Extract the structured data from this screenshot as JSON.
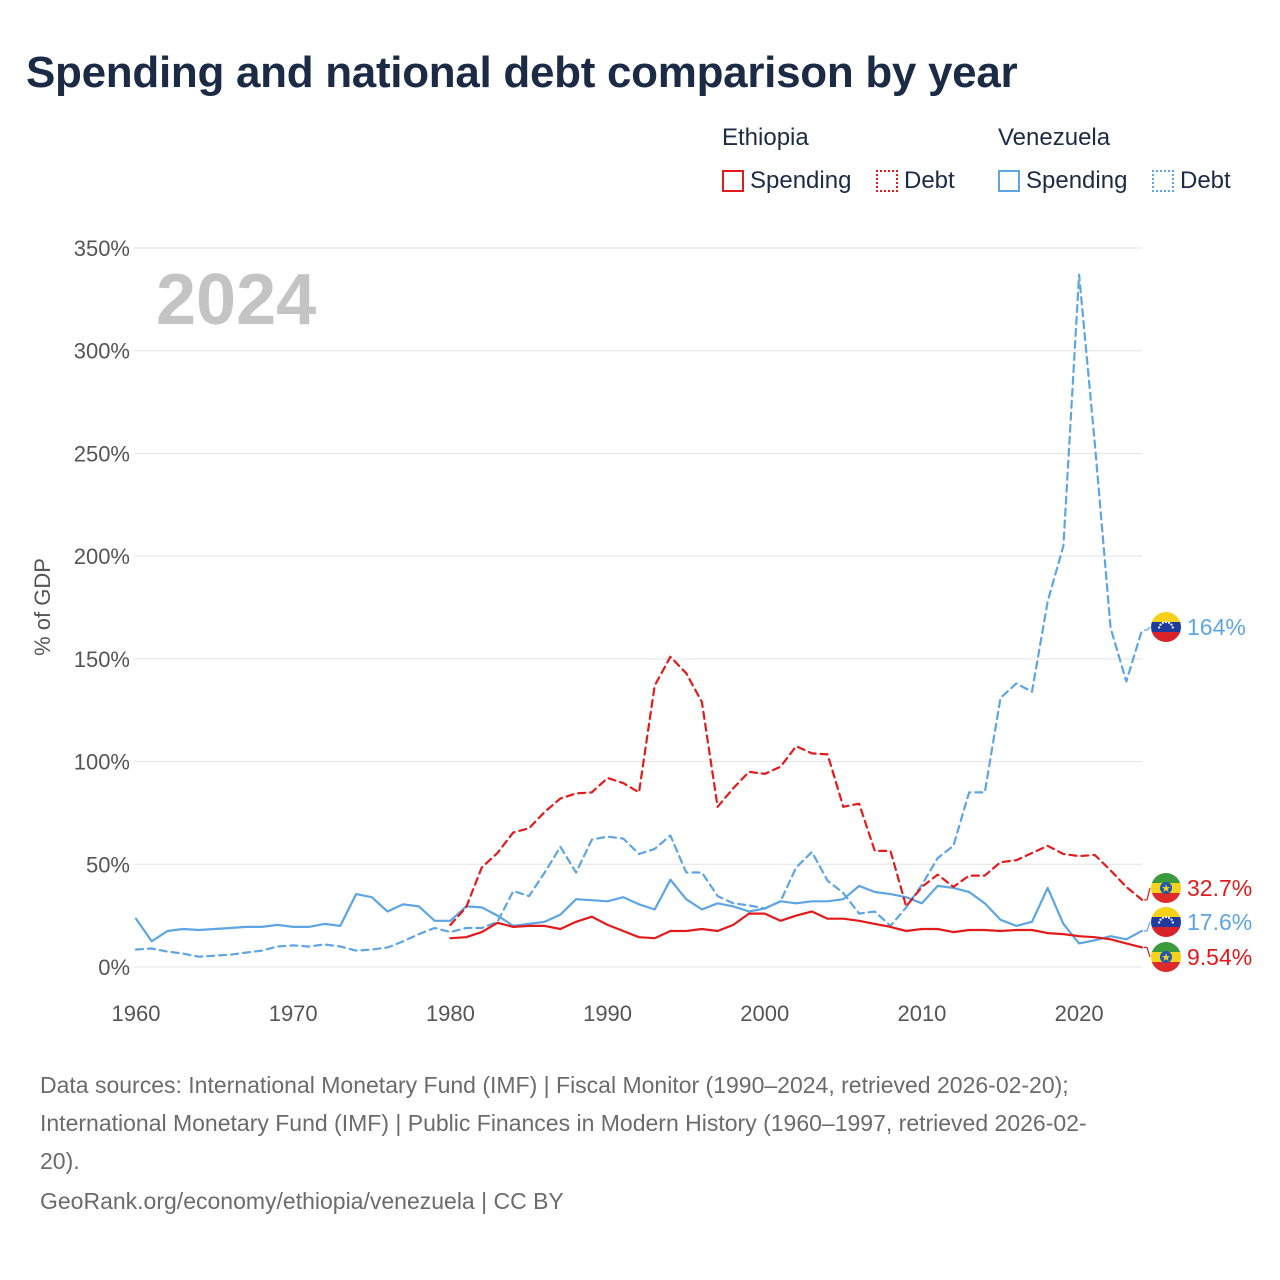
{
  "title": "Spending and national debt comparison by year",
  "legend": {
    "groups": [
      {
        "name": "Ethiopia",
        "color": "#e31a1c",
        "items": [
          "Spending",
          "Debt"
        ]
      },
      {
        "name": "Venezuela",
        "color": "#5da5e3",
        "items": [
          "Spending",
          "Debt"
        ]
      }
    ]
  },
  "year_watermark": "2024",
  "footer": {
    "sources_line1": "Data sources: International Monetary Fund (IMF) | Fiscal Monitor (1990–2024, retrieved 2026-02-20);",
    "sources_line2": "International Monetary Fund (IMF) | Public Finances in Modern History (1960–1997, retrieved 2026-02-",
    "sources_line3": "20).",
    "credit": "GeoRank.org/economy/ethiopia/venezuela | CC BY"
  },
  "chart_data": {
    "type": "line",
    "ylabel": "% of GDP",
    "xlabel": "",
    "xlim": [
      1960,
      2024
    ],
    "ylim": [
      0,
      350
    ],
    "x_ticks": [
      "1960",
      "1970",
      "1980",
      "1990",
      "2000",
      "2010",
      "2020"
    ],
    "y_ticks": [
      "0%",
      "50%",
      "100%",
      "150%",
      "200%",
      "250%",
      "300%",
      "350%"
    ],
    "end_labels": [
      {
        "series": "Venezuela Debt",
        "text": "164%",
        "color": "#5da5e3",
        "flag": "venezuela"
      },
      {
        "series": "Ethiopia Debt",
        "text": "32.7%",
        "color": "#e31a1c",
        "flag": "ethiopia"
      },
      {
        "series": "Venezuela Spending",
        "text": "17.6%",
        "color": "#5da5e3",
        "flag": "venezuela"
      },
      {
        "series": "Ethiopia Spending",
        "text": "9.54%",
        "color": "#e31a1c",
        "flag": "ethiopia"
      }
    ],
    "series": [
      {
        "name": "Venezuela Spending",
        "country": "Venezuela",
        "metric": "Spending",
        "color": "#5da5e3",
        "dash": "solid",
        "start_year": 1960,
        "values": [
          23.5,
          12.5,
          17.5,
          18.5,
          18,
          18.5,
          19,
          19.5,
          19.5,
          20.5,
          19.5,
          19.5,
          21,
          20,
          35.5,
          34,
          27,
          30.5,
          29.5,
          22.5,
          22.5,
          29.5,
          29,
          25,
          20,
          21,
          22,
          25.5,
          33,
          32.5,
          32,
          34,
          30.5,
          28,
          42.5,
          33,
          28,
          31,
          29.5,
          27,
          28.5,
          32,
          31,
          32,
          32,
          33,
          39.5,
          36.5,
          35.5,
          34,
          31,
          39.5,
          38.5,
          36.5,
          31,
          23,
          20,
          22,
          38.5,
          21,
          11.5,
          13,
          15,
          13.5,
          17.6
        ]
      },
      {
        "name": "Venezuela Debt",
        "country": "Venezuela",
        "metric": "Debt",
        "color": "#5da5e3",
        "dash": "dashed",
        "start_year": 1960,
        "values": [
          8.5,
          9,
          7.5,
          6.5,
          5,
          5.5,
          6,
          7,
          8,
          10,
          10.5,
          10,
          11,
          10,
          8,
          8.5,
          9.5,
          12.5,
          16,
          19,
          17,
          19,
          19,
          22,
          37,
          34.5,
          46,
          58.5,
          46,
          62,
          63.5,
          62.5,
          55,
          57.5,
          64,
          46,
          46,
          34.5,
          31,
          30,
          28.5,
          32,
          48.5,
          56,
          42,
          36,
          26,
          27,
          20,
          29,
          40,
          53,
          59,
          85,
          85,
          131,
          138,
          134,
          178,
          205,
          337,
          255,
          165,
          139,
          164
        ]
      },
      {
        "name": "Ethiopia Spending",
        "country": "Ethiopia",
        "metric": "Spending",
        "color": "#e31a1c",
        "dash": "solid",
        "start_year": 1980,
        "values": [
          14,
          14.5,
          17,
          21.5,
          19.5,
          20,
          20,
          18.5,
          22,
          24.5,
          20.5,
          17.5,
          14.5,
          14,
          17.5,
          17.5,
          18.5,
          17.5,
          20.5,
          26,
          26,
          22.5,
          25,
          27,
          23.5,
          23.5,
          22.5,
          21,
          19.5,
          17.5,
          18.5,
          18.5,
          17,
          18,
          18,
          17.5,
          18,
          18,
          16.5,
          16,
          15,
          14.5,
          13.5,
          11.5,
          9.54
        ]
      },
      {
        "name": "Ethiopia Debt",
        "country": "Ethiopia",
        "metric": "Debt",
        "color": "#e31a1c",
        "dash": "dashed",
        "start_year": 1980,
        "values": [
          20.5,
          29,
          48.5,
          55.5,
          65.5,
          67.5,
          75.5,
          82,
          84.5,
          85,
          92,
          89.5,
          85,
          137,
          151,
          143,
          129,
          78,
          87,
          95,
          94,
          97.5,
          107.5,
          104,
          103.5,
          78,
          79.5,
          56.5,
          56.5,
          29.5,
          39,
          45,
          39,
          44.5,
          44.5,
          51,
          52,
          55.5,
          59,
          55,
          54,
          54.5,
          47,
          39,
          32.7
        ]
      }
    ]
  }
}
